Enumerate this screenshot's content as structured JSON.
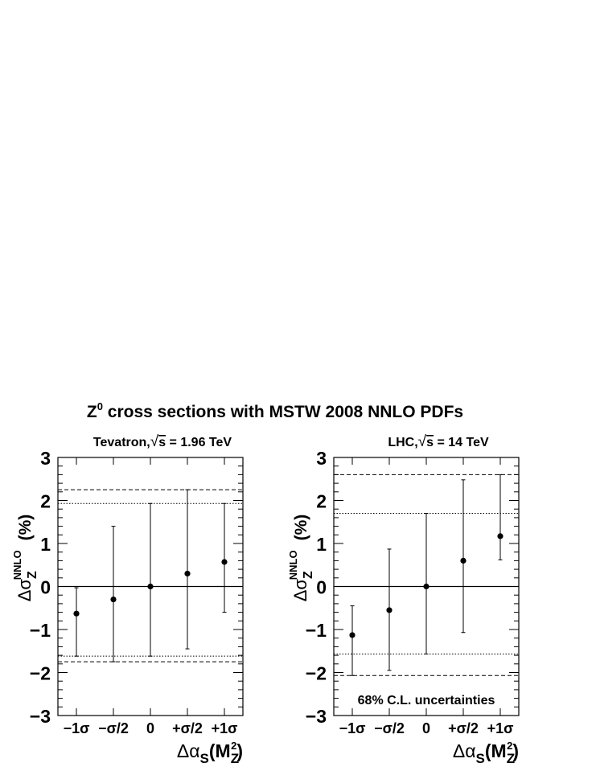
{
  "title_parts": {
    "main": "Z",
    "sup": "0",
    "rest": " cross sections with MSTW 2008 NNLO PDFs"
  },
  "chart_data": [
    {
      "type": "scatter",
      "panel_label": {
        "prefix": "Tevatron,",
        "root_symbol": "√",
        "root_arg": "s",
        "suffix": " = 1.96 TeV"
      },
      "categories": [
        "−1σ",
        "−σ/2",
        "0",
        "+σ/2",
        "+1σ"
      ],
      "x": [
        1,
        2,
        3,
        4,
        5
      ],
      "y": [
        -0.63,
        -0.3,
        0.0,
        0.3,
        0.57
      ],
      "yerr_upper": [
        -0.03,
        1.4,
        1.93,
        2.25,
        1.93
      ],
      "yerr_lower": [
        -1.62,
        -1.75,
        -1.62,
        -1.45,
        -0.6
      ],
      "ylim": [
        -3,
        3
      ],
      "yticks": [
        "−3",
        "−2",
        "−1",
        "0",
        "1",
        "2",
        "3"
      ],
      "hlines": {
        "solid": 0,
        "dotted": [
          1.93,
          -1.62
        ],
        "dashed": [
          2.25,
          -1.75
        ]
      },
      "ylabel": {
        "delta": "Δσ",
        "sub": "Z",
        "sup": "NNLO",
        "unit": "(%)"
      },
      "xlabel": {
        "delta": "Δα",
        "sub": "S",
        "paren_open": "(M",
        "msub": "Z",
        "msup": "2",
        "paren_close": ")"
      },
      "annotation": ""
    },
    {
      "type": "scatter",
      "panel_label": {
        "prefix": "LHC,",
        "root_symbol": "√",
        "root_arg": "s",
        "suffix": " = 14 TeV"
      },
      "categories": [
        "−1σ",
        "−σ/2",
        "0",
        "+σ/2",
        "+1σ"
      ],
      "x": [
        1,
        2,
        3,
        4,
        5
      ],
      "y": [
        -1.13,
        -0.55,
        0.0,
        0.6,
        1.17
      ],
      "yerr_upper": [
        -0.45,
        0.87,
        1.7,
        2.48,
        2.6
      ],
      "yerr_lower": [
        -2.07,
        -1.95,
        -1.57,
        -1.07,
        0.62
      ],
      "ylim": [
        -3,
        3
      ],
      "yticks": [
        "−3",
        "−2",
        "−1",
        "0",
        "1",
        "2",
        "3"
      ],
      "hlines": {
        "solid": 0,
        "dotted": [
          1.7,
          -1.57
        ],
        "dashed": [
          2.6,
          -2.07
        ]
      },
      "ylabel": {
        "delta": "Δσ",
        "sub": "Z",
        "sup": "NNLO",
        "unit": "(%)"
      },
      "xlabel": {
        "delta": "Δα",
        "sub": "S",
        "paren_open": "(M",
        "msub": "Z",
        "msup": "2",
        "paren_close": ")"
      },
      "annotation": "68% C.L. uncertainties"
    }
  ]
}
